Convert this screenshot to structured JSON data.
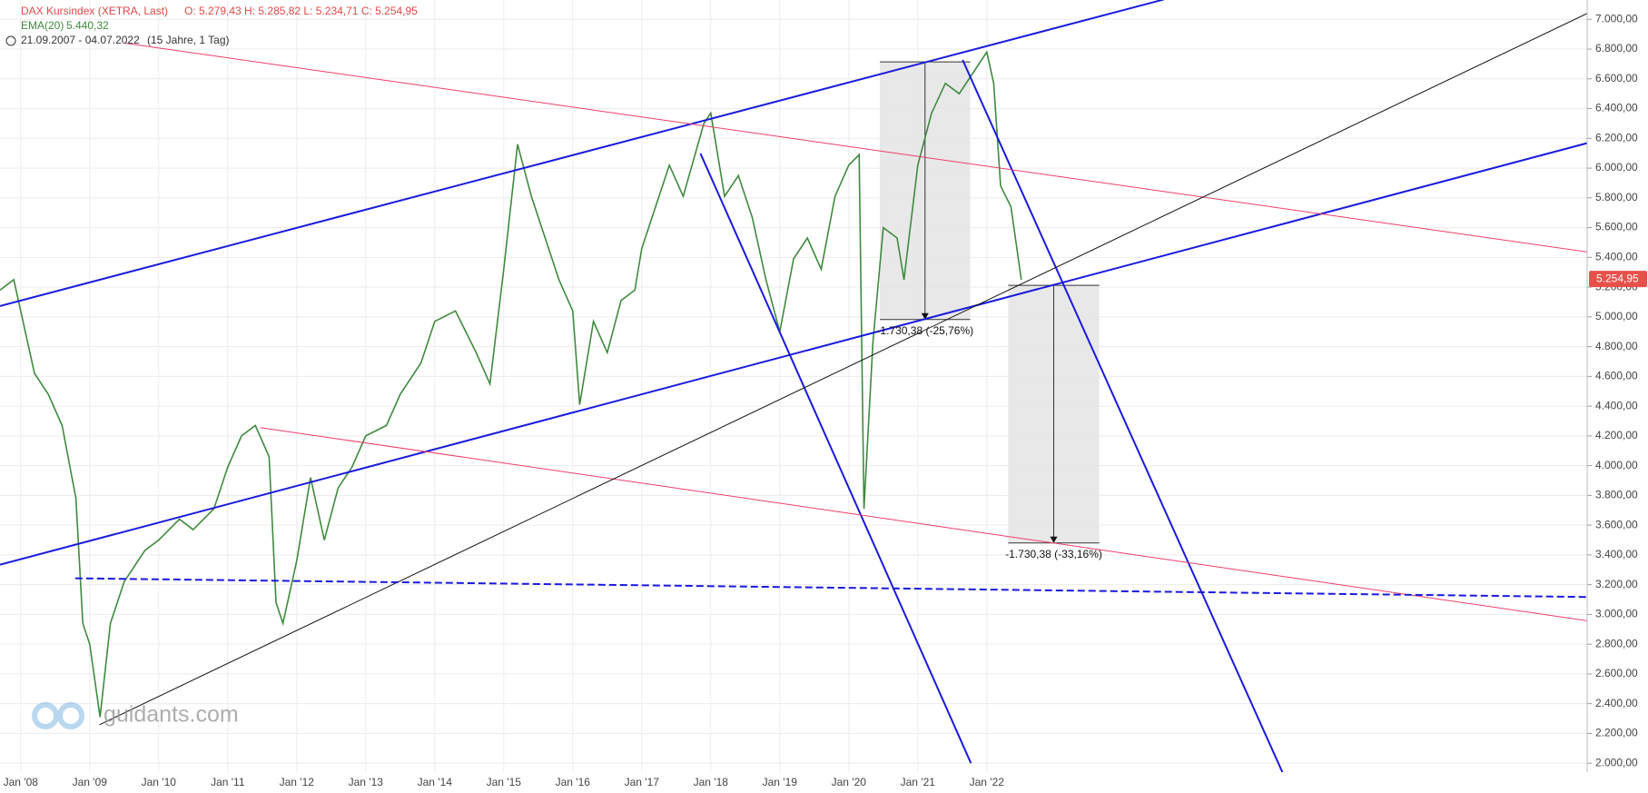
{
  "chart_data": {
    "type": "line",
    "header": {
      "instrument": "DAX Kursindex (XETRA, Last)",
      "ohlc": "O: 5.279,43   H: 5.285,82   L: 5.234,71   C: 5.254,95",
      "indicator": "EMA(20)",
      "indicator_value": "5.440,32",
      "range": "21.09.2007 - 04.07.2022",
      "range_note": "(15 Jahre, 1 Tag)"
    },
    "watermark": "guidants.com",
    "xlim": [
      2007.7,
      2030.7
    ],
    "ylim": [
      1940,
      7130
    ],
    "grid": true,
    "xticks": [
      {
        "value": 2008,
        "label": "Jan '08"
      },
      {
        "value": 2009,
        "label": "Jan '09"
      },
      {
        "value": 2010,
        "label": "Jan '10"
      },
      {
        "value": 2011,
        "label": "Jan '11"
      },
      {
        "value": 2012,
        "label": "Jan '12"
      },
      {
        "value": 2013,
        "label": "Jan '13"
      },
      {
        "value": 2014,
        "label": "Jan '14"
      },
      {
        "value": 2015,
        "label": "Jan '15"
      },
      {
        "value": 2016,
        "label": "Jan '16"
      },
      {
        "value": 2017,
        "label": "Jan '17"
      },
      {
        "value": 2018,
        "label": "Jan '18"
      },
      {
        "value": 2019,
        "label": "Jan '19"
      },
      {
        "value": 2020,
        "label": "Jan '20"
      },
      {
        "value": 2021,
        "label": "Jan '21"
      },
      {
        "value": 2022,
        "label": "Jan '22"
      }
    ],
    "yticks": [
      {
        "value": 2000,
        "label": "2.000,00"
      },
      {
        "value": 2200,
        "label": "2.200,00"
      },
      {
        "value": 2400,
        "label": "2.400,00"
      },
      {
        "value": 2600,
        "label": "2.600,00"
      },
      {
        "value": 2800,
        "label": "2.800,00"
      },
      {
        "value": 3000,
        "label": "3.000,00"
      },
      {
        "value": 3200,
        "label": "3.200,00"
      },
      {
        "value": 3400,
        "label": "3.400,00"
      },
      {
        "value": 3600,
        "label": "3.600,00"
      },
      {
        "value": 3800,
        "label": "3.800,00"
      },
      {
        "value": 4000,
        "label": "4.000,00"
      },
      {
        "value": 4200,
        "label": "4.200,00"
      },
      {
        "value": 4400,
        "label": "4.400,00"
      },
      {
        "value": 4600,
        "label": "4.600,00"
      },
      {
        "value": 4800,
        "label": "4.800,00"
      },
      {
        "value": 5000,
        "label": "5.000,00"
      },
      {
        "value": 5200,
        "label": "5.200,00"
      },
      {
        "value": 5400,
        "label": "5.400,00"
      },
      {
        "value": 5600,
        "label": "5.600,00"
      },
      {
        "value": 5800,
        "label": "5.800,00"
      },
      {
        "value": 6000,
        "label": "6.000,00"
      },
      {
        "value": 6200,
        "label": "6.200,00"
      },
      {
        "value": 6400,
        "label": "6.400,00"
      },
      {
        "value": 6600,
        "label": "6.600,00"
      },
      {
        "value": 6800,
        "label": "6.800,00"
      },
      {
        "value": 7000,
        "label": "7.000,00"
      }
    ],
    "x": [
      2007.7,
      2007.9,
      2008.0,
      2008.2,
      2008.4,
      2008.6,
      2008.8,
      2008.9,
      2009.0,
      2009.15,
      2009.3,
      2009.5,
      2009.8,
      2010.0,
      2010.3,
      2010.5,
      2010.8,
      2011.0,
      2011.2,
      2011.4,
      2011.6,
      2011.7,
      2011.8,
      2012.0,
      2012.2,
      2012.4,
      2012.6,
      2012.8,
      2013.0,
      2013.3,
      2013.5,
      2013.8,
      2014.0,
      2014.3,
      2014.6,
      2014.8,
      2015.0,
      2015.2,
      2015.4,
      2015.6,
      2015.8,
      2016.0,
      2016.1,
      2016.3,
      2016.5,
      2016.7,
      2016.9,
      2017.0,
      2017.2,
      2017.4,
      2017.6,
      2017.9,
      2018.0,
      2018.2,
      2018.4,
      2018.6,
      2018.8,
      2019.0,
      2019.2,
      2019.4,
      2019.6,
      2019.8,
      2020.0,
      2020.15,
      2020.22,
      2020.35,
      2020.5,
      2020.7,
      2020.8,
      2021.0,
      2021.2,
      2021.4,
      2021.6,
      2021.8,
      2022.0,
      2022.1,
      2022.2,
      2022.35,
      2022.5
    ],
    "series": [
      {
        "name": "DAX Kursindex (XETRA, Last)",
        "color": "#3f8a3f",
        "values": [
          5180,
          5250,
          5040,
          4620,
          4480,
          4270,
          3780,
          2940,
          2800,
          2310,
          2940,
          3220,
          3430,
          3500,
          3640,
          3570,
          3710,
          3990,
          4200,
          4270,
          4060,
          3080,
          2940,
          3360,
          3920,
          3500,
          3850,
          3990,
          4200,
          4270,
          4480,
          4690,
          4970,
          5040,
          4760,
          4550,
          5320,
          6160,
          5810,
          5530,
          5250,
          5040,
          4410,
          4970,
          4760,
          5110,
          5180,
          5460,
          5740,
          6020,
          5810,
          6300,
          6370,
          5810,
          5950,
          5670,
          5250,
          4900,
          5390,
          5530,
          5320,
          5810,
          6020,
          6090,
          3710,
          4830,
          5600,
          5530,
          5250,
          6020,
          6370,
          6570,
          6500,
          6640,
          6780,
          6570,
          5880,
          5740,
          5250
        ]
      }
    ],
    "last_price": {
      "value": 5254.95,
      "label": "5.254,95",
      "color": "#e8504a"
    },
    "trendlines": [
      {
        "x": [
          2007.7,
          2024.56
        ],
        "y": [
          5073,
          7133
        ],
        "color": "#1a1adf",
        "width": 2,
        "dashed": false
      },
      {
        "x": [
          2007.7,
          2030.71
        ],
        "y": [
          3334,
          6169
        ],
        "color": "#1a1adf",
        "width": 2,
        "dashed": false
      },
      {
        "x": [
          2017.85,
          2021.77
        ],
        "y": [
          6099,
          2000
        ],
        "color": "#1a1adf",
        "width": 2,
        "dashed": false
      },
      {
        "x": [
          2021.65,
          2026.34
        ],
        "y": [
          6727,
          1881
        ],
        "color": "#1a1adf",
        "width": 2,
        "dashed": false
      },
      {
        "x": [
          2009.52,
          2030.71
        ],
        "y": [
          6839,
          5436
        ],
        "color": "#ec3f6c",
        "width": 1,
        "dashed": false
      },
      {
        "x": [
          2011.47,
          2030.71
        ],
        "y": [
          4256,
          2957
        ],
        "color": "#ec3f6c",
        "width": 1,
        "dashed": false
      },
      {
        "x": [
          2009.14,
          2030.71
        ],
        "y": [
          2258,
          7042
        ],
        "color": "#111111",
        "width": 1,
        "dashed": false
      },
      {
        "x": [
          2008.79,
          2030.71
        ],
        "y": [
          3243,
          3117
        ],
        "color": "#1a1adf",
        "width": 2,
        "dashed": true
      }
    ],
    "measurements": [
      {
        "x": [
          2020.45,
          2021.76
        ],
        "y": [
          6714,
          4982
        ],
        "label": "-1.730,38 (-25,76%)"
      },
      {
        "x": [
          2022.31,
          2023.63
        ],
        "y": [
          5212,
          3480
        ],
        "label": "-1.730,38 (-33,16%)"
      }
    ]
  }
}
